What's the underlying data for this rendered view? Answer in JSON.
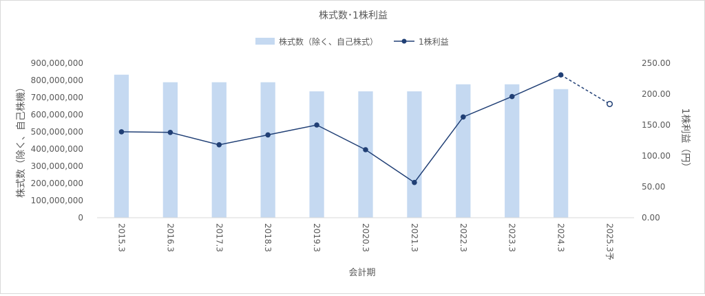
{
  "chart_data": {
    "type": "bar",
    "title": "株式数･1株利益",
    "xlabel": "会計期",
    "ylabel": "株式数（除く、自己株機）",
    "y2label": "1株利益（円）",
    "categories": [
      "2015.3",
      "2016.3",
      "2017.3",
      "2018.3",
      "2019.3",
      "2020.3",
      "2021.3",
      "2022.3",
      "2023.3",
      "2024.3",
      "2025.3予"
    ],
    "ylim": [
      0,
      900000000
    ],
    "y2lim": [
      0,
      250
    ],
    "yticks": [
      "0",
      "100,000,000",
      "200,000,000",
      "300,000,000",
      "400,000,000",
      "500,000,000",
      "600,000,000",
      "700,000,000",
      "800,000,000",
      "900,000,000"
    ],
    "y2ticks": [
      "0.00",
      "50.00",
      "100.00",
      "150.00",
      "200.00",
      "250.00"
    ],
    "legend_position": "top",
    "grid": false,
    "series": [
      {
        "name": "株式数（除く、自己株式）",
        "type": "bar",
        "axis": "left",
        "color": "#c5d9f1",
        "values": [
          833000000,
          789000000,
          789000000,
          789000000,
          736000000,
          736000000,
          736000000,
          777000000,
          777000000,
          749000000,
          null
        ]
      },
      {
        "name": "1株利益",
        "type": "line",
        "axis": "right",
        "color": "#203f75",
        "values": [
          139,
          138,
          118,
          134,
          150,
          110,
          57,
          163,
          196,
          231,
          184
        ],
        "forecast_from_index": 9
      }
    ]
  }
}
